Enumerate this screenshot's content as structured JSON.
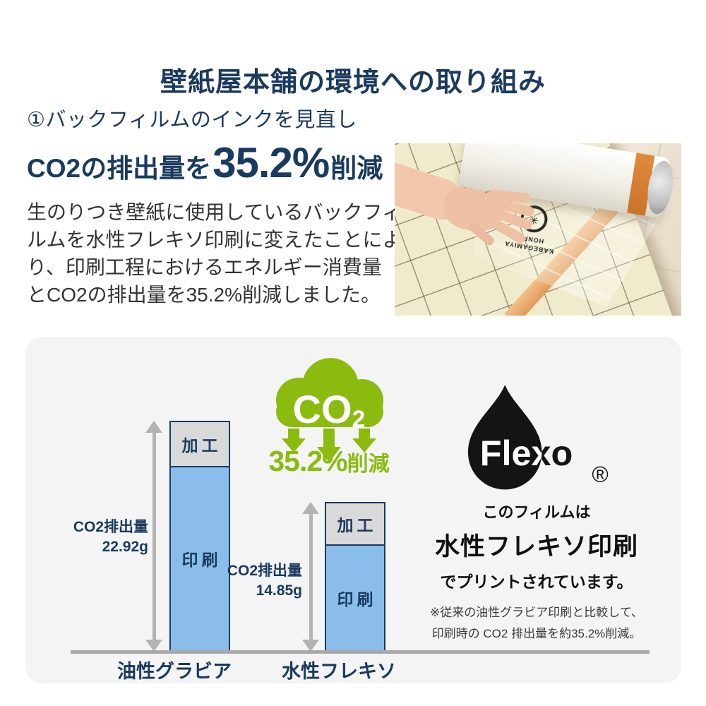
{
  "page": {
    "title": "壁紙屋本舗の環境への取り組み"
  },
  "intro": {
    "section_heading": "①バックフィルムのインクを見直し",
    "headline_prefix": "CO2の排出量を",
    "headline_value": "35.2%",
    "headline_suffix": "削減",
    "body_lines": [
      "生のりつき壁紙に使用しているバックフィ",
      "ルムを水性フレキソ印刷に変えたことによ",
      "り、印刷工程におけるエネルギー消費量",
      "とCO2の排出量を35.2%削減しました。"
    ]
  },
  "photo": {
    "overlay_text": "KABEGAMIYA HONPO"
  },
  "chart_data": {
    "type": "bar",
    "title": "",
    "categories": [
      "油性グラビア",
      "水性フレキソ"
    ],
    "unit": "g",
    "legend_position": "none",
    "grid": false,
    "segments_note": "segment split estimated from bar proportions; totals are labeled on chart",
    "bars": [
      {
        "category": "油性グラビア",
        "annotation_label": "CO2排出量",
        "annotation_value": "22.92g",
        "total_g": 22.92,
        "segments": [
          {
            "label": "加工",
            "value_g": 4.4,
            "color": "#d9d9d9"
          },
          {
            "label": "印刷",
            "value_g": 18.52,
            "color": "#8abde9"
          }
        ]
      },
      {
        "category": "水性フレキソ",
        "annotation_label": "CO2排出量",
        "annotation_value": "14.85g",
        "total_g": 14.85,
        "segments": [
          {
            "label": "加工",
            "value_g": 4.2,
            "color": "#d9d9d9"
          },
          {
            "label": "印刷",
            "value_g": 10.65,
            "color": "#8abde9"
          }
        ]
      }
    ]
  },
  "co2_badge": {
    "cloud_text": "CO",
    "cloud_subscript": "2",
    "reduction_value": "35.2%",
    "reduction_suffix": "削減",
    "color": "#8cbb10"
  },
  "flexo": {
    "brand": "Flexo",
    "registered_mark": "®",
    "line1": "このフィルムは",
    "line2": "水性フレキソ印刷",
    "line3": "でプリントされています。",
    "note_line1": "※従来の油性グラビア印刷と比較して、",
    "note_line2": "印刷時の CO2 排出量を約35.2%削減。"
  },
  "colors": {
    "navy": "#1a3a5f",
    "body_text": "#333333",
    "green": "#8cbb10",
    "bar_blue": "#8abde9",
    "bar_gray": "#d9d9d9",
    "panel_bg": "#f4f4f5",
    "axis_gray": "#a9a9a9",
    "arrow_gray": "#b3b3b3"
  }
}
